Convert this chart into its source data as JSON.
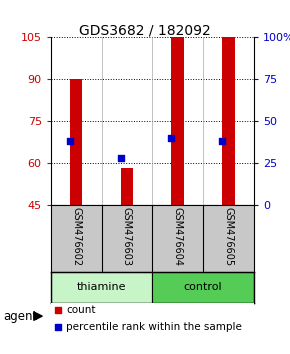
{
  "title": "GDS3682 / 182092",
  "samples": [
    "GSM476602",
    "GSM476603",
    "GSM476604",
    "GSM476605"
  ],
  "group_labels": [
    "thiamine",
    "control"
  ],
  "bar_bottom": 45,
  "red_tops": [
    90,
    58,
    105,
    105
  ],
  "blue_vals": [
    38,
    28,
    40,
    38
  ],
  "ylim_left": [
    45,
    105
  ],
  "ylim_right": [
    0,
    100
  ],
  "yticks_left": [
    45,
    60,
    75,
    90,
    105
  ],
  "yticks_right": [
    0,
    25,
    50,
    75,
    100
  ],
  "ytick_labels_right": [
    "0",
    "25",
    "50",
    "75",
    "100%"
  ],
  "red_color": "#cc0000",
  "blue_color": "#0000cc",
  "bar_width": 0.25,
  "dot_size": 18,
  "sample_box_color": "#c8c8c8",
  "thiamine_color": "#c8f5c8",
  "control_color": "#55cc55",
  "agent_label": "agent",
  "legend_count": "count",
  "legend_pct": "percentile rank within the sample",
  "title_fontsize": 10,
  "tick_fontsize": 8,
  "sample_fontsize": 7,
  "group_fontsize": 8,
  "legend_fontsize": 7.5
}
